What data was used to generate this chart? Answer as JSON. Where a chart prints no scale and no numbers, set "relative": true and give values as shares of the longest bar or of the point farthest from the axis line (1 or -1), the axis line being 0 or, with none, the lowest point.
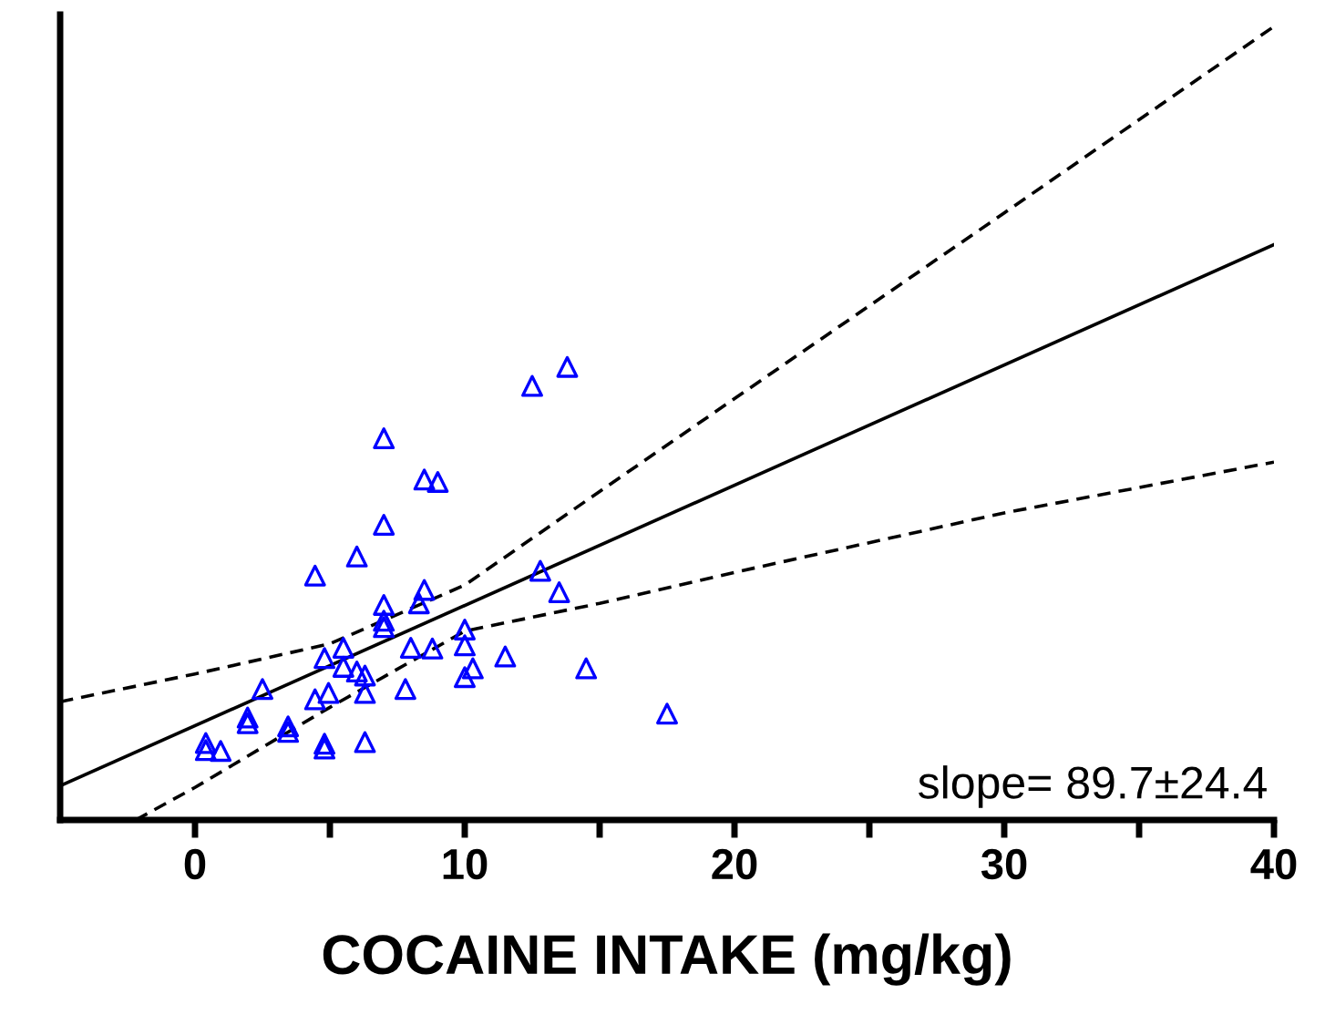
{
  "chart_data": {
    "type": "scatter",
    "xlabel": "COCAINE INTAKE (mg/kg)",
    "relative": true,
    "xlim": [
      -5,
      40
    ],
    "xticks": [
      0,
      {
        "value": 5,
        "label": null
      },
      10,
      {
        "value": 15,
        "label": null
      },
      20,
      {
        "value": 25,
        "label": null
      },
      30,
      {
        "value": 35,
        "label": null
      },
      40
    ],
    "tick_labels": "x",
    "grid": false,
    "legend": false,
    "annotations": [
      "slope= 89.7±24.4"
    ],
    "series": [
      {
        "color": "#0000ff",
        "marker": "triangle",
        "x": [
          13.8,
          12.5,
          7.0,
          8.5,
          9.0,
          7.0,
          6.0,
          4.45,
          12.8,
          13.5,
          8.5,
          8.3,
          7.0,
          7.0,
          7.0,
          10.0,
          10.0,
          5.5,
          8.0,
          8.8,
          4.8,
          11.5,
          5.5,
          6.0,
          6.3,
          10.3,
          14.5,
          10.0,
          2.5,
          7.8,
          6.3,
          4.95,
          4.45,
          1.95,
          1.95,
          3.45,
          3.45,
          17.5,
          0.4,
          0.4,
          0.95,
          4.8,
          4.8,
          6.3
        ],
        "values": [
          0.571,
          0.547,
          0.481,
          0.429,
          0.426,
          0.372,
          0.332,
          0.308,
          0.314,
          0.287,
          0.29,
          0.273,
          0.271,
          0.251,
          0.243,
          0.24,
          0.22,
          0.217,
          0.217,
          0.216,
          0.204,
          0.206,
          0.193,
          0.187,
          0.182,
          0.191,
          0.191,
          0.18,
          0.165,
          0.165,
          0.16,
          0.16,
          0.152,
          0.129,
          0.122,
          0.118,
          0.111,
          0.134,
          0.097,
          0.088,
          0.087,
          0.096,
          0.09,
          0.098
        ]
      },
      {
        "type": "line",
        "color": "#000000",
        "line_style": "solid",
        "marker": "none",
        "x": [
          -5,
          40
        ],
        "values": [
          0.043,
          0.725
        ]
      },
      {
        "type": "line",
        "color": "#000000",
        "line_style": "dashed",
        "marker": "none",
        "x": [
          -5,
          0,
          5,
          10,
          15,
          20,
          30,
          40
        ],
        "values": [
          0.149,
          0.184,
          0.222,
          0.296,
          0.414,
          0.531,
          0.765,
          1.0
        ]
      },
      {
        "type": "line",
        "color": "#000000",
        "line_style": "dashed",
        "marker": "none",
        "x": [
          -2.2,
          0,
          5,
          10,
          15,
          20,
          30,
          40
        ],
        "values": [
          0.0,
          0.041,
          0.142,
          0.238,
          0.273,
          0.312,
          0.387,
          0.451
        ]
      }
    ]
  }
}
